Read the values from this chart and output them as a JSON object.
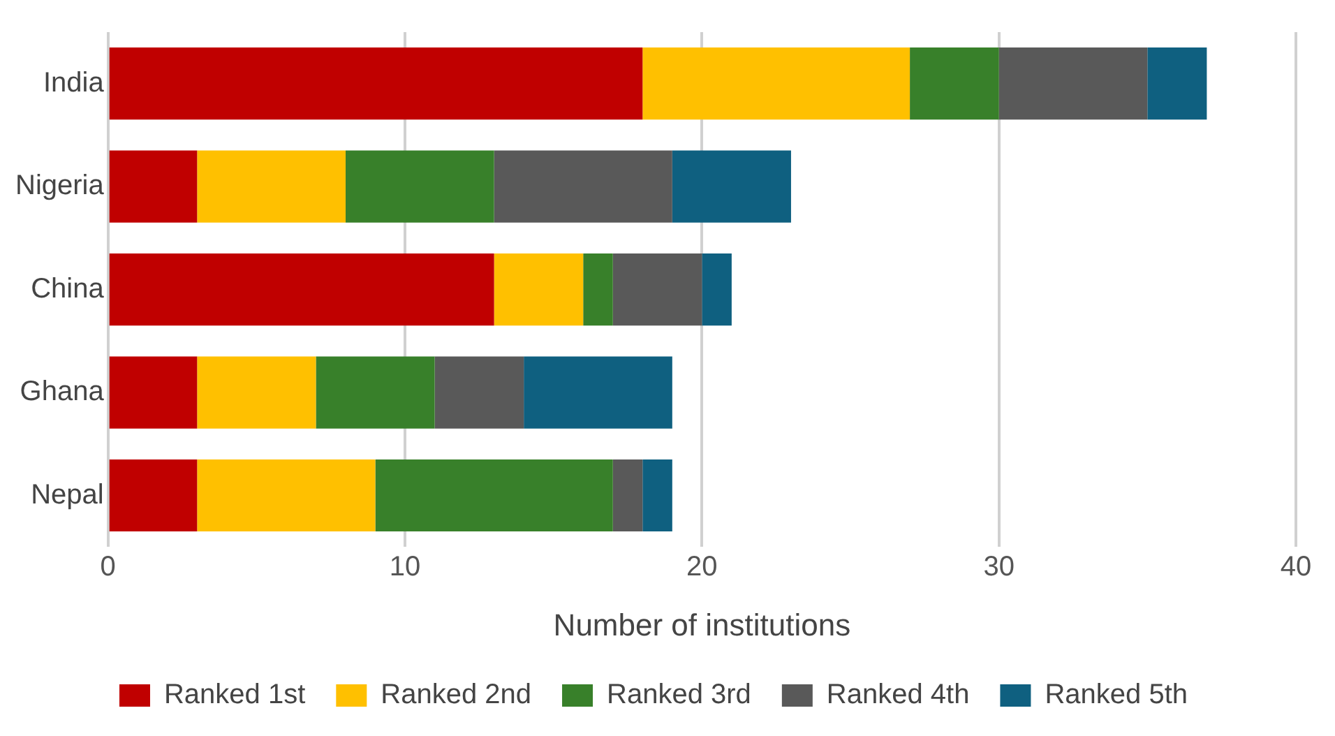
{
  "chart_data": {
    "type": "bar",
    "orientation": "horizontal",
    "stacked": true,
    "xlabel": "Number of institutions",
    "categories": [
      "India",
      "Nigeria",
      "China",
      "Ghana",
      "Nepal"
    ],
    "series": [
      {
        "name": "Ranked 1st",
        "color": "#c00000",
        "values": [
          18,
          3,
          13,
          3,
          3
        ]
      },
      {
        "name": "Ranked 2nd",
        "color": "#ffc000",
        "values": [
          9,
          5,
          3,
          4,
          6
        ]
      },
      {
        "name": "Ranked 3rd",
        "color": "#38802a",
        "values": [
          3,
          5,
          1,
          4,
          8
        ]
      },
      {
        "name": "Ranked 4th",
        "color": "#595959",
        "values": [
          5,
          6,
          3,
          3,
          1
        ]
      },
      {
        "name": "Ranked 5th",
        "color": "#0f6080",
        "values": [
          2,
          4,
          1,
          5,
          1
        ]
      }
    ],
    "xlim": [
      0,
      40
    ],
    "xticks": [
      0,
      10,
      20,
      30,
      40
    ],
    "grid": "x",
    "legend": "bottom"
  }
}
